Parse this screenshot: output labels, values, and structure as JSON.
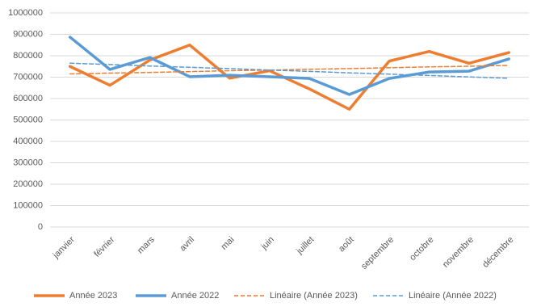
{
  "chart_data": {
    "type": "line",
    "categories": [
      "janvier",
      "février",
      "mars",
      "avril",
      "mai",
      "juin",
      "juillet",
      "août",
      "septembre",
      "octobre",
      "novembre",
      "décembre"
    ],
    "series": [
      {
        "name": "Année 2023",
        "color": "#ed7d31",
        "dashed": false,
        "values": [
          750000,
          662000,
          780000,
          850000,
          695000,
          730000,
          645000,
          550000,
          775000,
          820000,
          765000,
          815000
        ]
      },
      {
        "name": "Année 2022",
        "color": "#5b9bd5",
        "dashed": false,
        "values": [
          887000,
          736000,
          792000,
          702000,
          709000,
          702000,
          694000,
          619000,
          694000,
          724000,
          728000,
          785000
        ]
      },
      {
        "name": "Linéaire (Année 2023)",
        "color": "#ed7d31",
        "dashed": true,
        "values": [
          715000,
          719000,
          722000,
          726000,
          730000,
          733000,
          737000,
          740000,
          744000,
          748000,
          751000,
          755000
        ]
      },
      {
        "name": "Linéaire (Année 2022)",
        "color": "#5b9bd5",
        "dashed": true,
        "values": [
          765000,
          759000,
          752000,
          746000,
          740000,
          733000,
          727000,
          720000,
          714000,
          708000,
          701000,
          695000
        ]
      }
    ],
    "ylim": [
      0,
      1000000
    ],
    "yticks": [
      0,
      100000,
      200000,
      300000,
      400000,
      500000,
      600000,
      700000,
      800000,
      900000,
      1000000
    ],
    "grid": true,
    "legend": "bottom"
  }
}
